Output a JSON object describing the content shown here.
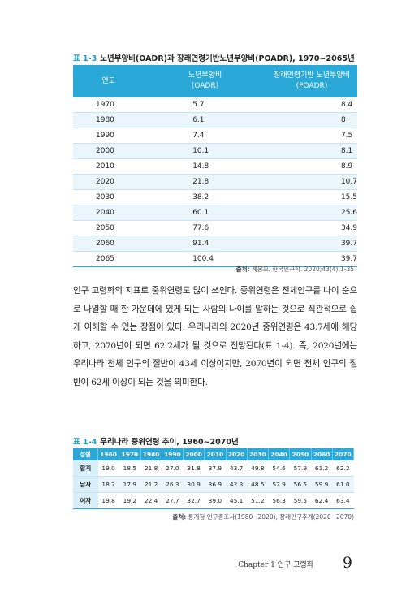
{
  "table1": {
    "tag": "표 1-3",
    "title": "노년부양비(OADR)과 장래연령기반노년부양비(POADR), 1970~2065년",
    "headers": {
      "year": "연도",
      "oadr_1": "노년부양비",
      "oadr_2": "(OADR)",
      "poadr_1": "장래연령기반 노년부양비",
      "poadr_2": "(POADR)"
    },
    "rows": [
      {
        "year": "1970",
        "oadr": "5.7",
        "poadr": "8.4"
      },
      {
        "year": "1980",
        "oadr": "6.1",
        "poadr": "8"
      },
      {
        "year": "1990",
        "oadr": "7.4",
        "poadr": "7.5"
      },
      {
        "year": "2000",
        "oadr": "10.1",
        "poadr": "8.1"
      },
      {
        "year": "2010",
        "oadr": "14.8",
        "poadr": "8.9"
      },
      {
        "year": "2020",
        "oadr": "21.8",
        "poadr": "10.7"
      },
      {
        "year": "2030",
        "oadr": "38.2",
        "poadr": "15.5"
      },
      {
        "year": "2040",
        "oadr": "60.1",
        "poadr": "25.6"
      },
      {
        "year": "2050",
        "oadr": "77.6",
        "poadr": "34.9"
      },
      {
        "year": "2060",
        "oadr": "91.4",
        "poadr": "39.7"
      },
      {
        "year": "2065",
        "oadr": "100.4",
        "poadr": "39.7"
      }
    ],
    "source_label": "출처:",
    "source_text": "계봉오. 한국인구학. 2020;43(4):1-35"
  },
  "body_text": "인구 고령화의 지표로 중위연령도 많이 쓰인다. 중위연령은 전체인구를 나이 순으로 나열할 때 한 가운데에 있게 되는 사람의 나이를 말하는 것으로 직관적으로 쉽게 이해할 수 있는 장점이 있다. 우리나라의 2020년 중위연령은 43.7세에 해당하고, 2070년이 되면 62.2세가 될 것으로 전망된다(표 1-4). 즉, 2020년에는 우리나라 전체 인구의 절반이 43세 이상이지만, 2070년이 되면 전체 인구의 절반이 62세 이상이 되는 것을 의미한다.",
  "table2": {
    "tag": "표 1-4",
    "title": "우리나라 중위연령 추이, 1960~2070년",
    "header_label": "성별",
    "years": [
      "1960",
      "1970",
      "1980",
      "1990",
      "2000",
      "2010",
      "2020",
      "2030",
      "2040",
      "2050",
      "2060",
      "2070"
    ],
    "rows": [
      {
        "label": "합계",
        "values": [
          "19.0",
          "18.5",
          "21.8",
          "27.0",
          "31.8",
          "37.9",
          "43.7",
          "49.8",
          "54.6",
          "57.9",
          "61.2",
          "62.2"
        ]
      },
      {
        "label": "남자",
        "values": [
          "18.2",
          "17.9",
          "21.2",
          "26.3",
          "30.9",
          "36.9",
          "42.3",
          "48.5",
          "52.9",
          "56.5",
          "59.9",
          "61.0"
        ]
      },
      {
        "label": "여자",
        "values": [
          "19.8",
          "19.2",
          "22.4",
          "27.7",
          "32.7",
          "39.0",
          "45.1",
          "51.2",
          "56.3",
          "59.5",
          "62.4",
          "63.4"
        ]
      }
    ],
    "source_label": "출처:",
    "source_text": "통계청 인구총조사(1980~2020), 장래인구추계(2020~2070)"
  },
  "footer": {
    "chapter": "Chapter 1  인구 고령화",
    "page": "9"
  }
}
